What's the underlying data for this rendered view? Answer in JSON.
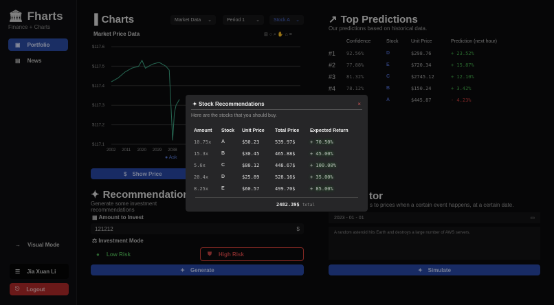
{
  "app": {
    "name": "Fharts",
    "subtitle": "Finance + Charts"
  },
  "sidebar": {
    "items": [
      {
        "label": "Portfolio",
        "icon": "briefcase-icon",
        "active": true
      },
      {
        "label": "News",
        "icon": "newspaper-icon",
        "active": false
      }
    ],
    "visual_mode": "Visual Mode",
    "user": "Jia Xuan Li",
    "logout": "Logout"
  },
  "charts": {
    "title": "Charts",
    "selects": [
      "Market Data",
      "Period 1",
      "Stock A"
    ],
    "chart_title": "Market Price Data",
    "show_price": "Show Price",
    "chart_data": {
      "type": "line",
      "x_ticks": [
        "2002",
        "2011",
        "2020",
        "2029",
        "2038"
      ],
      "y_ticks": [
        "$117.6",
        "$117.5",
        "$117.4",
        "$117.3",
        "$117.2",
        "$117.1"
      ],
      "ylim": [
        117.1,
        117.6
      ],
      "legend": "Ask",
      "series": [
        {
          "name": "Ask",
          "x": [
            2002,
            2006,
            2010,
            2014,
            2018,
            2020,
            2022,
            2026,
            2030,
            2034,
            2036,
            2038,
            2039,
            2040,
            2042
          ],
          "y": [
            117.42,
            117.44,
            117.47,
            117.49,
            117.5,
            117.53,
            117.49,
            117.51,
            117.52,
            117.5,
            117.48,
            117.12,
            117.26,
            117.3,
            117.33
          ]
        }
      ],
      "grid": true
    }
  },
  "predictions": {
    "title": "Top Predictions",
    "subtitle": "Our predictions based on historical data.",
    "headers": [
      "",
      "Confidence",
      "Stock",
      "Unit Price",
      "Prediction (next hour)"
    ],
    "rows": [
      {
        "rank": "#1",
        "confidence": "92.56%",
        "stock": "D",
        "price": "$298.76",
        "prediction": "+ 23.52%"
      },
      {
        "rank": "#2",
        "confidence": "77.88%",
        "stock": "E",
        "price": "$720.34",
        "prediction": "+ 15.87%"
      },
      {
        "rank": "#3",
        "confidence": "81.32%",
        "stock": "C",
        "price": "$2745.12",
        "prediction": "+ 12.10%"
      },
      {
        "rank": "#4",
        "confidence": "78.12%",
        "stock": "B",
        "price": "$150.24",
        "prediction": "+ 3.42%"
      },
      {
        "rank": "",
        "confidence": "",
        "stock": "A",
        "price": "$445.87",
        "prediction": "- 4.23%"
      }
    ]
  },
  "recommendations": {
    "title": "Recommendations",
    "subtitle": "Generate some investment recommendations",
    "amount_label": "Amount to Invest",
    "amount_value": "121212",
    "currency": "$",
    "mode_label": "Investment Mode",
    "low_risk": "Low Risk",
    "high_risk": "High Risk",
    "generate": "Generate"
  },
  "simulator": {
    "title": "tor",
    "subtitle": "s to prices when a certain event happens, at a certain date.",
    "date": "2023 - 01 - 01",
    "placeholder": "A random asteroid hits Earth and destroys a large number of AWS servers.",
    "simulate": "Simulate"
  },
  "modal": {
    "title": "Stock Recommendations",
    "subtitle": "Here are the stocks that you should buy.",
    "headers": [
      "Amount",
      "Stock",
      "Unit Price",
      "Total Price",
      "Expected Return"
    ],
    "rows": [
      {
        "amount": "10.75x",
        "stock": "A",
        "unit": "$50.23",
        "total": "539.97$",
        "ret": "+ 70.50%"
      },
      {
        "amount": "15.3x",
        "stock": "B",
        "unit": "$30.45",
        "total": "465.88$",
        "ret": "+ 45.00%"
      },
      {
        "amount": "5.6x",
        "stock": "C",
        "unit": "$80.12",
        "total": "448.67$",
        "ret": "+ 100.00%"
      },
      {
        "amount": "20.4x",
        "stock": "D",
        "unit": "$25.89",
        "total": "528.16$",
        "ret": "+ 35.00%"
      },
      {
        "amount": "8.25x",
        "stock": "E",
        "unit": "$60.57",
        "total": "499.70$",
        "ret": "+ 85.00%"
      }
    ],
    "total": "2482.39$",
    "total_label": "total",
    "close": "×"
  },
  "colors": {
    "accent": "#2c4da6",
    "green": "#4bdb55",
    "red": "#d9423a",
    "stock": "#4a6ef0"
  }
}
